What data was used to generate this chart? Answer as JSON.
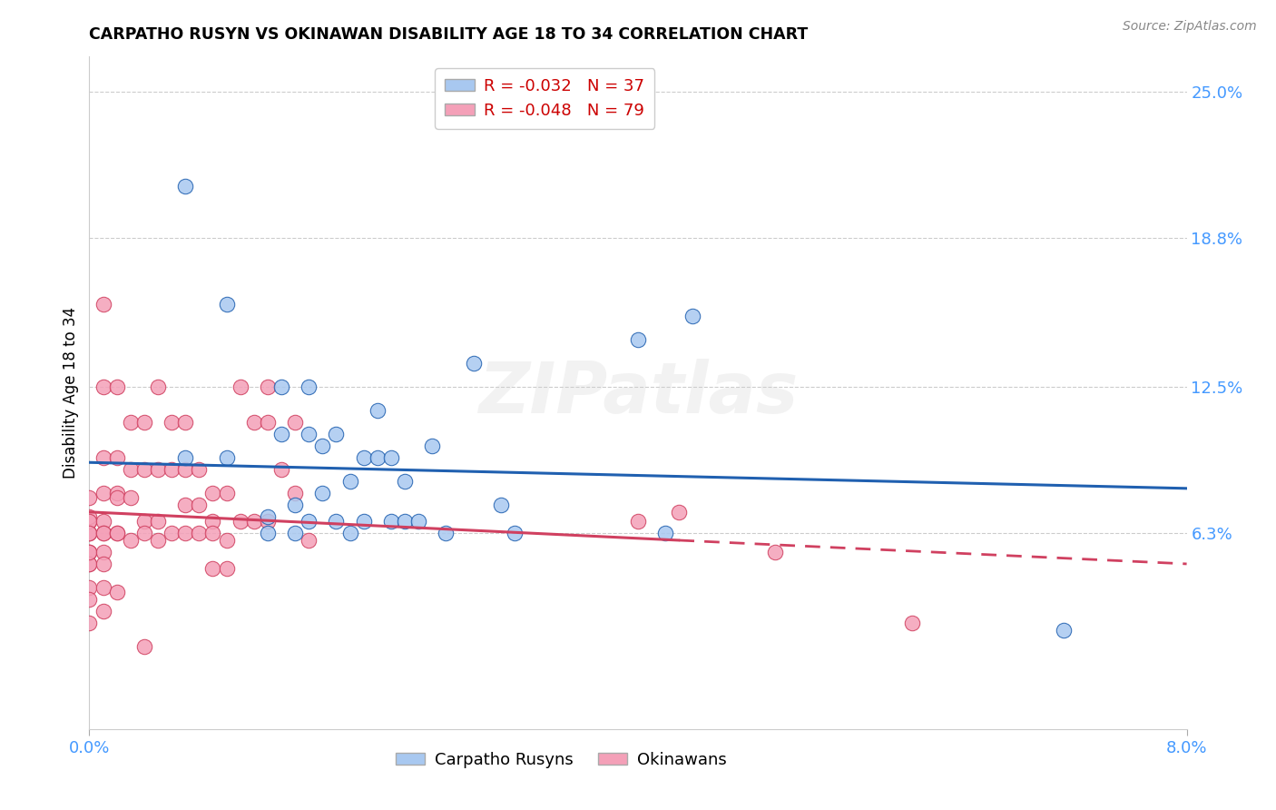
{
  "title": "CARPATHO RUSYN VS OKINAWAN DISABILITY AGE 18 TO 34 CORRELATION CHART",
  "source": "Source: ZipAtlas.com",
  "ylabel": "Disability Age 18 to 34",
  "xlim": [
    0.0,
    0.08
  ],
  "ylim": [
    -0.02,
    0.265
  ],
  "ytick_values": [
    0.063,
    0.125,
    0.188,
    0.25
  ],
  "ytick_labels": [
    "6.3%",
    "12.5%",
    "18.8%",
    "25.0%"
  ],
  "R_blue": -0.032,
  "N_blue": 37,
  "R_pink": -0.048,
  "N_pink": 79,
  "blue_color": "#a8c8f0",
  "pink_color": "#f4a0b8",
  "trend_blue_color": "#2060b0",
  "trend_pink_color": "#d04060",
  "watermark": "ZIPatlas",
  "trend_blue_x0": 0.0,
  "trend_blue_y0": 0.093,
  "trend_blue_x1": 0.08,
  "trend_blue_y1": 0.082,
  "trend_pink_solid_x0": 0.0,
  "trend_pink_solid_y0": 0.072,
  "trend_pink_solid_x1": 0.043,
  "trend_pink_solid_y1": 0.06,
  "trend_pink_dash_x0": 0.043,
  "trend_pink_dash_y0": 0.06,
  "trend_pink_dash_x1": 0.08,
  "trend_pink_dash_y1": 0.05,
  "blue_x": [
    0.007,
    0.01,
    0.01,
    0.013,
    0.013,
    0.014,
    0.014,
    0.015,
    0.015,
    0.016,
    0.016,
    0.016,
    0.017,
    0.017,
    0.018,
    0.018,
    0.019,
    0.019,
    0.02,
    0.02,
    0.021,
    0.021,
    0.022,
    0.022,
    0.023,
    0.023,
    0.024,
    0.025,
    0.026,
    0.028,
    0.03,
    0.031,
    0.04,
    0.042,
    0.044,
    0.071,
    0.007
  ],
  "blue_y": [
    0.095,
    0.16,
    0.095,
    0.07,
    0.063,
    0.125,
    0.105,
    0.075,
    0.063,
    0.125,
    0.105,
    0.068,
    0.1,
    0.08,
    0.105,
    0.068,
    0.085,
    0.063,
    0.095,
    0.068,
    0.115,
    0.095,
    0.095,
    0.068,
    0.085,
    0.068,
    0.068,
    0.1,
    0.063,
    0.135,
    0.075,
    0.063,
    0.145,
    0.063,
    0.155,
    0.022,
    0.21
  ],
  "pink_x": [
    0.0,
    0.0,
    0.0,
    0.0,
    0.0,
    0.0,
    0.0,
    0.0,
    0.0,
    0.0,
    0.0,
    0.0,
    0.0,
    0.0,
    0.0,
    0.0,
    0.001,
    0.001,
    0.001,
    0.001,
    0.001,
    0.001,
    0.001,
    0.001,
    0.001,
    0.001,
    0.001,
    0.002,
    0.002,
    0.002,
    0.002,
    0.002,
    0.002,
    0.002,
    0.003,
    0.003,
    0.003,
    0.003,
    0.004,
    0.004,
    0.004,
    0.004,
    0.004,
    0.005,
    0.005,
    0.005,
    0.005,
    0.006,
    0.006,
    0.006,
    0.007,
    0.007,
    0.007,
    0.007,
    0.008,
    0.008,
    0.008,
    0.009,
    0.009,
    0.009,
    0.009,
    0.01,
    0.01,
    0.01,
    0.011,
    0.011,
    0.012,
    0.012,
    0.013,
    0.013,
    0.013,
    0.014,
    0.015,
    0.015,
    0.016,
    0.04,
    0.043,
    0.05,
    0.06
  ],
  "pink_y": [
    0.068,
    0.068,
    0.063,
    0.063,
    0.055,
    0.055,
    0.05,
    0.05,
    0.07,
    0.078,
    0.068,
    0.063,
    0.055,
    0.04,
    0.035,
    0.025,
    0.125,
    0.16,
    0.095,
    0.08,
    0.068,
    0.063,
    0.063,
    0.055,
    0.05,
    0.04,
    0.03,
    0.125,
    0.095,
    0.08,
    0.078,
    0.063,
    0.063,
    0.038,
    0.11,
    0.09,
    0.078,
    0.06,
    0.11,
    0.09,
    0.068,
    0.063,
    0.015,
    0.125,
    0.09,
    0.068,
    0.06,
    0.11,
    0.09,
    0.063,
    0.11,
    0.09,
    0.075,
    0.063,
    0.09,
    0.075,
    0.063,
    0.08,
    0.068,
    0.063,
    0.048,
    0.08,
    0.06,
    0.048,
    0.125,
    0.068,
    0.11,
    0.068,
    0.125,
    0.11,
    0.068,
    0.09,
    0.11,
    0.08,
    0.06,
    0.068,
    0.072,
    0.055,
    0.025
  ]
}
